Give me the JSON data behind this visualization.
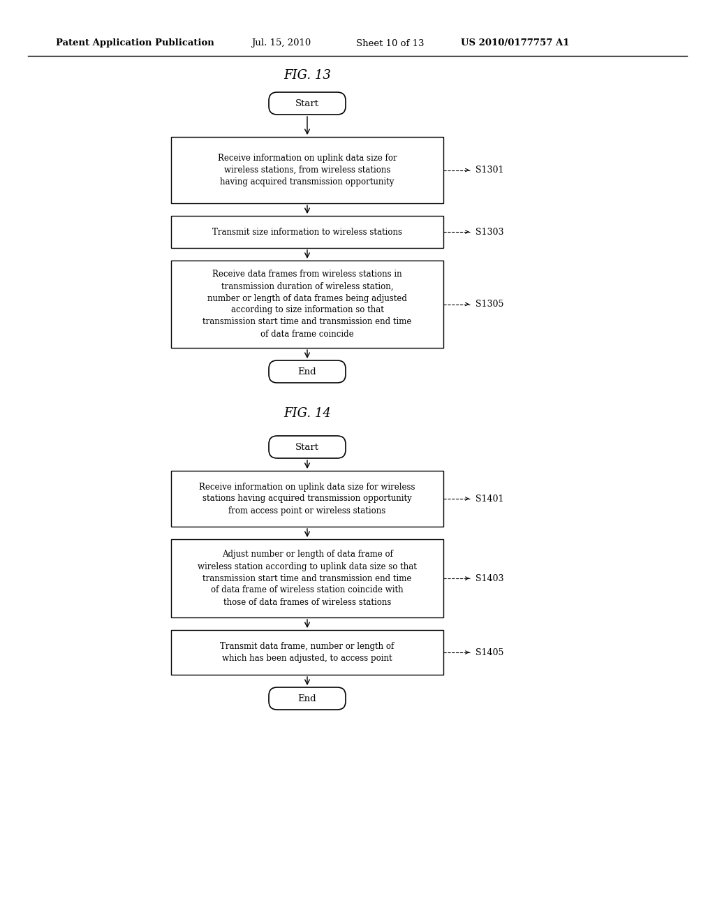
{
  "bg_color": "#ffffff",
  "header_left": "Patent Application Publication",
  "header_mid1": "Jul. 15, 2010",
  "header_mid2": "Sheet 10 of 13",
  "header_right": "US 2010/0177757 A1",
  "fig13_title": "FIG. 13",
  "fig14_title": "FIG. 14",
  "label_start": "Start",
  "label_end": "End",
  "s1301_text": "Receive information on uplink data size for\nwireless stations, from wireless stations\nhaving acquired transmission opportunity",
  "s1301_tag": "S1301",
  "s1303_text": "Transmit size information to wireless stations",
  "s1303_tag": "S1303",
  "s1305_text": "Receive data frames from wireless stations in\ntransmission duration of wireless station,\nnumber or length of data frames being adjusted\naccording to size information so that\ntransmission start time and transmission end time\nof data frame coincide",
  "s1305_tag": "S1305",
  "s1401_text": "Receive information on uplink data size for wireless\nstations having acquired transmission opportunity\nfrom access point or wireless stations",
  "s1401_tag": "S1401",
  "s1403_text": "Adjust number or length of data frame of\nwireless station according to uplink data size so that\ntransmission start time and transmission end time\nof data frame of wireless station coincide with\nthose of data frames of wireless stations",
  "s1403_tag": "S1403",
  "s1405_text": "Transmit data frame, number or length of\nwhich has been adjusted, to access point",
  "s1405_tag": "S1405"
}
